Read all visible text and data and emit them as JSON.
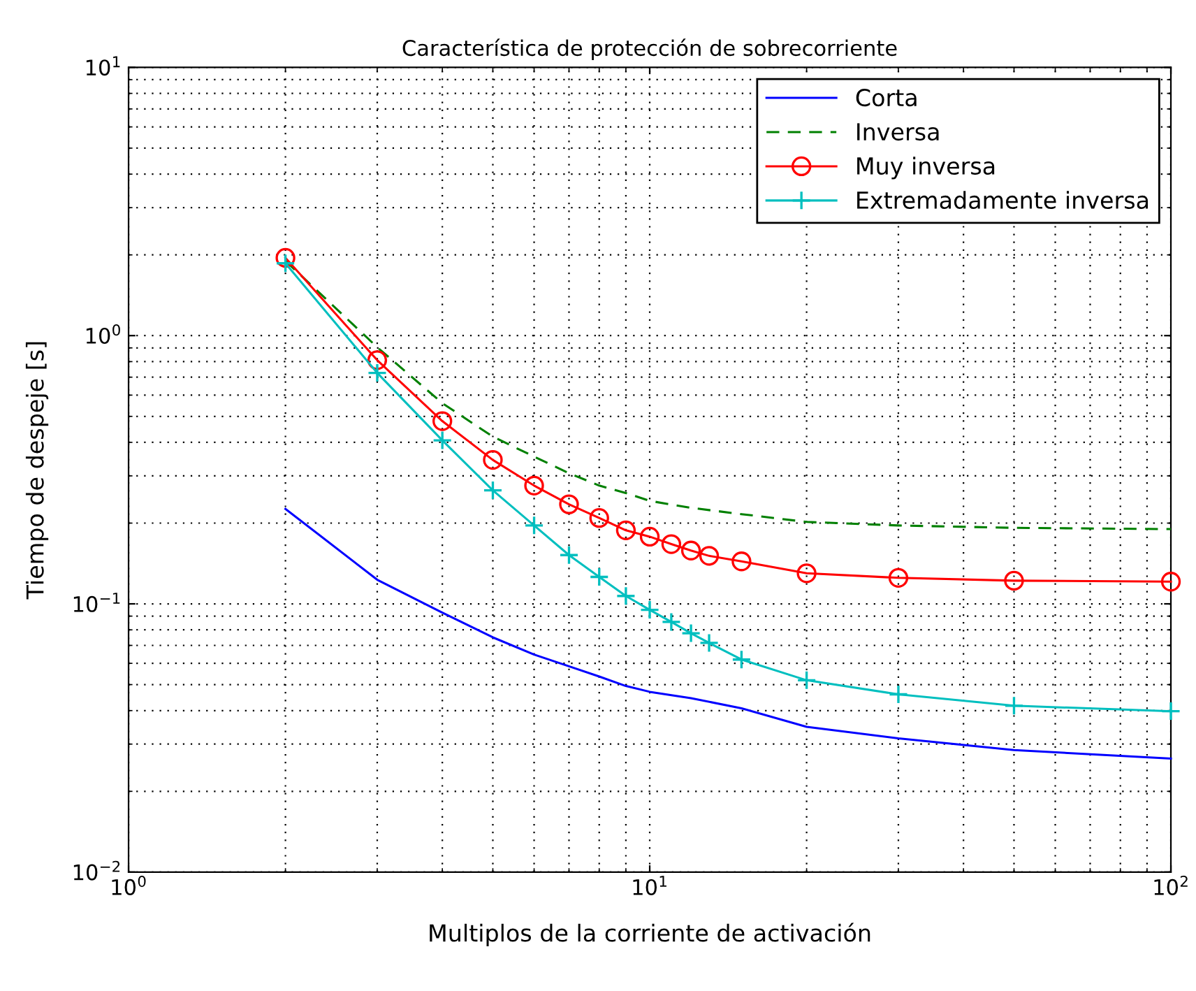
{
  "chart_data": {
    "type": "line",
    "title": "Característica de protección de sobrecorriente",
    "xlabel": "Multiplos de la corriente de activación",
    "ylabel": "Tiempo de despeje [s]",
    "log": "xy",
    "xlim": [
      1,
      100
    ],
    "ylim": [
      0.01,
      10
    ],
    "xticks": [
      {
        "value": 1,
        "label": "10$^{0}$"
      },
      {
        "value": 10,
        "label": "10$^{1}$"
      },
      {
        "value": 100,
        "label": "10$^{2}$"
      }
    ],
    "yticks": [
      {
        "value": 0.01,
        "label": "10$^{−2}$"
      },
      {
        "value": 0.1,
        "label": "10$^{−1}$"
      },
      {
        "value": 1,
        "label": "10$^{0}$"
      },
      {
        "value": 10,
        "label": "10$^{1}$"
      }
    ],
    "grid": true,
    "legend": "top right",
    "series": [
      {
        "name": "Corta",
        "color": "#0000ff",
        "line_style": "solid",
        "marker": "none",
        "x": [
          2,
          3,
          4,
          5,
          6,
          7,
          8,
          9,
          10,
          12,
          15,
          20,
          30,
          50,
          100
        ],
        "values": [
          0.226,
          0.123,
          0.0927,
          0.075,
          0.0647,
          0.0585,
          0.0536,
          0.0494,
          0.047,
          0.0445,
          0.0408,
          0.0348,
          0.0315,
          0.0285,
          0.0265
        ]
      },
      {
        "name": "Inversa",
        "color": "#008000",
        "line_style": "dashed",
        "marker": "none",
        "x": [
          2,
          3,
          4,
          5,
          6,
          7,
          8,
          9,
          10,
          12,
          15,
          20,
          30,
          50,
          100
        ],
        "values": [
          1.9,
          0.905,
          0.56,
          0.42,
          0.354,
          0.307,
          0.276,
          0.259,
          0.242,
          0.228,
          0.216,
          0.202,
          0.196,
          0.192,
          0.19
        ]
      },
      {
        "name": "Muy inversa",
        "color": "#ff0000",
        "line_style": "solid",
        "marker": "circle",
        "x": [
          2,
          3,
          4,
          5,
          6,
          7,
          8,
          9,
          10,
          11,
          12,
          13,
          15,
          20,
          30,
          50,
          100
        ],
        "values": [
          1.95,
          0.81,
          0.48,
          0.344,
          0.276,
          0.235,
          0.209,
          0.188,
          0.178,
          0.167,
          0.158,
          0.151,
          0.144,
          0.13,
          0.125,
          0.122,
          0.121
        ]
      },
      {
        "name": "Extremadamente inversa",
        "color": "#00bfbf",
        "line_style": "solid",
        "marker": "cross",
        "x": [
          2,
          3,
          4,
          5,
          6,
          7,
          8,
          9,
          10,
          11,
          12,
          13,
          15,
          20,
          30,
          50,
          100
        ],
        "values": [
          1.86,
          0.726,
          0.407,
          0.265,
          0.196,
          0.152,
          0.126,
          0.107,
          0.095,
          0.0856,
          0.0777,
          0.0715,
          0.062,
          0.0519,
          0.046,
          0.0417,
          0.0398
        ]
      }
    ]
  }
}
